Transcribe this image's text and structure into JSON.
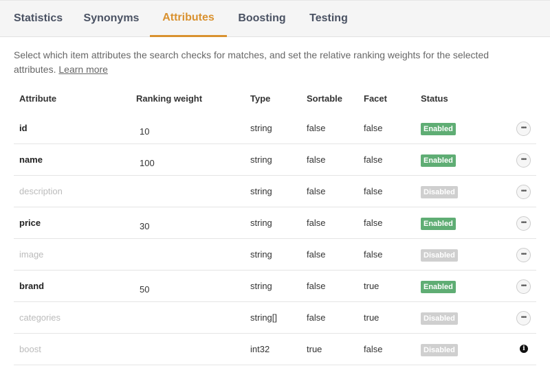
{
  "tabs": [
    {
      "label": "Statistics"
    },
    {
      "label": "Synonyms"
    },
    {
      "label": "Attributes"
    },
    {
      "label": "Boosting"
    },
    {
      "label": "Testing"
    }
  ],
  "active_tab": "Attributes",
  "description": {
    "text": "Select which item attributes the search checks for matches, and set the relative ranking weights for the selected attributes. ",
    "link": "Learn more"
  },
  "columns": [
    "Attribute",
    "Ranking weight",
    "Type",
    "Sortable",
    "Facet",
    "Status"
  ],
  "rows": [
    {
      "name": "id",
      "weight": "10",
      "type": "string",
      "sortable": "false",
      "facet": "false",
      "status": "Enabled",
      "enabled": true,
      "action": "more"
    },
    {
      "name": "name",
      "weight": "100",
      "type": "string",
      "sortable": "false",
      "facet": "false",
      "status": "Enabled",
      "enabled": true,
      "action": "more"
    },
    {
      "name": "description",
      "weight": "",
      "type": "string",
      "sortable": "false",
      "facet": "false",
      "status": "Disabled",
      "enabled": false,
      "action": "more"
    },
    {
      "name": "price",
      "weight": "30",
      "type": "string",
      "sortable": "false",
      "facet": "false",
      "status": "Enabled",
      "enabled": true,
      "action": "more"
    },
    {
      "name": "image",
      "weight": "",
      "type": "string",
      "sortable": "false",
      "facet": "false",
      "status": "Disabled",
      "enabled": false,
      "action": "more"
    },
    {
      "name": "brand",
      "weight": "50",
      "type": "string",
      "sortable": "false",
      "facet": "true",
      "status": "Enabled",
      "enabled": true,
      "action": "more"
    },
    {
      "name": "categories",
      "weight": "",
      "type": "string[]",
      "sortable": "false",
      "facet": "true",
      "status": "Disabled",
      "enabled": false,
      "action": "more"
    },
    {
      "name": "boost",
      "weight": "",
      "type": "int32",
      "sortable": "true",
      "facet": "false",
      "status": "Disabled",
      "enabled": false,
      "action": "info"
    }
  ],
  "colors": {
    "accent": "#d9912f",
    "enabled": "#5fad74",
    "disabled": "#cfcfcf"
  }
}
